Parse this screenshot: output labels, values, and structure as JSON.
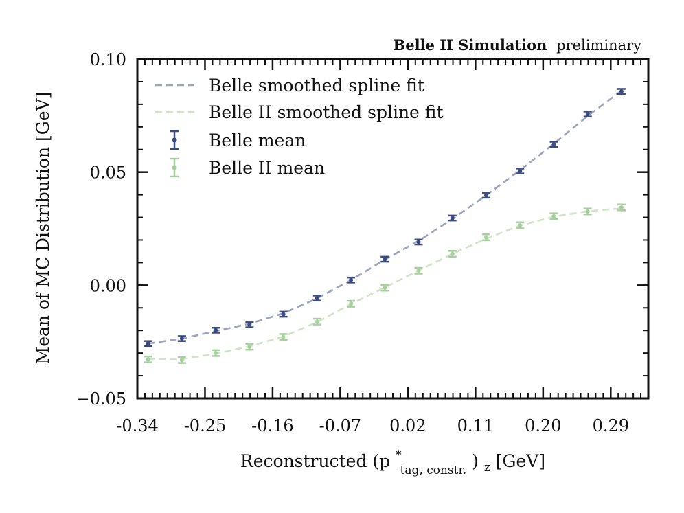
{
  "chart_data": {
    "type": "scatter",
    "banner": {
      "bold": "Belle II Simulation",
      "normal": "preliminary"
    },
    "xlabel": {
      "prefix": "Reconstructed (p",
      "sup": "*",
      "sub": "tag, constr.",
      "suffix": ")",
      "sub2": "z",
      "unit": " [GeV]"
    },
    "ylabel": "Mean of MC Distribution [GeV]",
    "xlim": [
      -0.34,
      0.34
    ],
    "ylim": [
      -0.05,
      0.1
    ],
    "x_ticks": [
      {
        "value": -0.34,
        "label": "-0.34"
      },
      {
        "value": -0.25,
        "label": "-0.25"
      },
      {
        "value": -0.16,
        "label": "-0.16"
      },
      {
        "value": -0.07,
        "label": "-0.07"
      },
      {
        "value": 0.02,
        "label": "0.02"
      },
      {
        "value": 0.11,
        "label": "0.11"
      },
      {
        "value": 0.2,
        "label": "0.20"
      },
      {
        "value": 0.29,
        "label": "0.29"
      }
    ],
    "y_ticks": [
      {
        "value": -0.05,
        "label": "−0.05"
      },
      {
        "value": 0.0,
        "label": "0.00"
      },
      {
        "value": 0.05,
        "label": "0.05"
      },
      {
        "value": 0.1,
        "label": "0.10"
      }
    ],
    "grid": false,
    "legend": {
      "placement": "top-left",
      "entries": [
        {
          "label": "Belle smoothed spline fit",
          "kind": "dashed-line",
          "color": "#9da3bd"
        },
        {
          "label": "Belle II smoothed spline fit",
          "kind": "dashed-line",
          "color": "#cfe3c6"
        },
        {
          "label": "Belle mean",
          "kind": "errorbar",
          "color": "#3c4b7e"
        },
        {
          "label": "Belle II mean",
          "kind": "errorbar",
          "color": "#a8cfa0"
        }
      ]
    },
    "series": [
      {
        "name": "Belle mean",
        "color": "#3c4b7e",
        "x": [
          -0.3257,
          -0.2807,
          -0.2357,
          -0.1907,
          -0.1457,
          -0.1007,
          -0.0557,
          -0.0107,
          0.0343,
          0.0793,
          0.1243,
          0.1693,
          0.2143,
          0.2593,
          0.3043
        ],
        "values": [
          -0.0258,
          -0.0236,
          -0.0199,
          -0.0175,
          -0.0128,
          -0.0057,
          0.0023,
          0.0115,
          0.0191,
          0.0297,
          0.0398,
          0.0505,
          0.0623,
          0.0757,
          0.0857
        ],
        "err": [
          0.0011,
          0.0011,
          0.0011,
          0.0011,
          0.0011,
          0.0011,
          0.0011,
          0.0011,
          0.0011,
          0.0011,
          0.0011,
          0.0011,
          0.0011,
          0.0011,
          0.0011
        ]
      },
      {
        "name": "Belle II mean",
        "color": "#a8cfa0",
        "x": [
          -0.3257,
          -0.2807,
          -0.2357,
          -0.1907,
          -0.1457,
          -0.1007,
          -0.0557,
          -0.0107,
          0.0343,
          0.0793,
          0.1243,
          0.1693,
          0.2143,
          0.2593,
          0.3043
        ],
        "values": [
          -0.0328,
          -0.0331,
          -0.03,
          -0.0272,
          -0.0229,
          -0.0161,
          -0.0082,
          -0.0011,
          0.0064,
          0.0139,
          0.0212,
          0.0265,
          0.0305,
          0.0326,
          0.0344
        ],
        "err": [
          0.0013,
          0.0013,
          0.0013,
          0.0013,
          0.0013,
          0.0013,
          0.0013,
          0.0013,
          0.0013,
          0.0013,
          0.0013,
          0.0013,
          0.0013,
          0.0013,
          0.0013
        ]
      },
      {
        "name": "Belle smoothed spline fit",
        "color": "#9da3bd",
        "dashed": true,
        "x": [
          -0.3257,
          -0.2807,
          -0.2357,
          -0.1907,
          -0.1457,
          -0.1007,
          -0.0557,
          -0.0107,
          0.0343,
          0.0793,
          0.1243,
          0.1693,
          0.2143,
          0.2593,
          0.3043
        ],
        "values": [
          -0.0258,
          -0.0236,
          -0.0203,
          -0.017,
          -0.0124,
          -0.0058,
          0.0023,
          0.0113,
          0.0196,
          0.0293,
          0.0398,
          0.0508,
          0.0626,
          0.0748,
          0.086
        ]
      },
      {
        "name": "Belle II smoothed spline fit",
        "color": "#cfe3c6",
        "dashed": true,
        "x": [
          -0.3257,
          -0.2807,
          -0.2357,
          -0.1907,
          -0.1457,
          -0.1007,
          -0.0557,
          -0.0107,
          0.0343,
          0.0793,
          0.1243,
          0.1693,
          0.2143,
          0.2593,
          0.3043
        ],
        "values": [
          -0.0325,
          -0.0327,
          -0.0303,
          -0.027,
          -0.0227,
          -0.0163,
          -0.0083,
          -0.001,
          0.0065,
          0.0139,
          0.0206,
          0.0264,
          0.0303,
          0.0327,
          0.034
        ]
      }
    ]
  }
}
